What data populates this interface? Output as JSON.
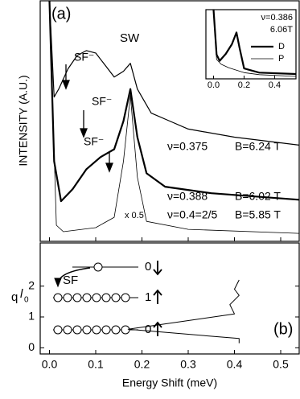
{
  "chart_data": [
    {
      "type": "line",
      "ylabel": "INTENSITY (A.U.)",
      "xlim": [
        -0.02,
        0.54
      ],
      "ylim": [
        0,
        10
      ],
      "annotations": [
        "(a)",
        "SW",
        "SF⁻",
        "SF⁻",
        "SF⁻"
      ],
      "series": [
        {
          "name": "ν=0.375",
          "field": "B=6.24 T",
          "color": "#000000",
          "line_width": 1.2,
          "x": [
            0.0,
            0.01,
            0.02,
            0.04,
            0.06,
            0.08,
            0.1,
            0.12,
            0.14,
            0.16,
            0.175,
            0.19,
            0.22,
            0.26,
            0.3,
            0.4,
            0.54
          ],
          "values": [
            10,
            6.0,
            6.33,
            7.17,
            7.73,
            7.93,
            7.83,
            7.33,
            6.83,
            7.07,
            7.4,
            6.33,
            5.33,
            5.0,
            4.67,
            4.33,
            4.0
          ]
        },
        {
          "name": "ν=0.388",
          "field": "B=6.02 T",
          "color": "#000000",
          "line_width": 2.2,
          "x": [
            0.0,
            0.01,
            0.025,
            0.05,
            0.08,
            0.11,
            0.14,
            0.16,
            0.175,
            0.19,
            0.21,
            0.25,
            0.35,
            0.54
          ],
          "values": [
            10,
            3.33,
            1.67,
            2.17,
            3.0,
            3.5,
            3.83,
            5.0,
            6.33,
            4.33,
            2.83,
            2.27,
            2.0,
            1.73
          ]
        },
        {
          "name": "ν=0.4=2/5",
          "field": "B=5.85 T",
          "scale_label": "x 0.5",
          "color": "#000000",
          "line_width": 0.8,
          "x": [
            0.0,
            0.015,
            0.03,
            0.1,
            0.14,
            0.16,
            0.175,
            0.19,
            0.21,
            0.3,
            0.54
          ],
          "values": [
            10,
            0.67,
            0.4,
            0.57,
            1.0,
            3.33,
            6.07,
            2.67,
            0.83,
            0.5,
            0.33
          ]
        }
      ]
    },
    {
      "type": "line",
      "title": "ν=0.386",
      "subtitle": "6.06T",
      "xlim": [
        -0.05,
        0.54
      ],
      "ylim": [
        0,
        10
      ],
      "xticks": [
        {
          "value": 0.0,
          "label": "0.0"
        },
        0.2,
        0.4
      ],
      "series": [
        {
          "name": "D",
          "color": "#000000",
          "line_width": 2.2,
          "x": [
            0.0,
            0.02,
            0.04,
            0.08,
            0.12,
            0.15,
            0.17,
            0.2,
            0.3,
            0.54
          ],
          "values": [
            10,
            3.5,
            2.6,
            3.6,
            5.0,
            6.7,
            4.5,
            1.5,
            0.9,
            0.7
          ]
        },
        {
          "name": "P",
          "color": "#000000",
          "line_width": 0.8,
          "x": [
            0.0,
            0.02,
            0.05,
            0.1,
            0.2,
            0.3,
            0.54
          ],
          "values": [
            10,
            2.8,
            2.1,
            1.6,
            0.9,
            0.6,
            0.35
          ]
        }
      ]
    },
    {
      "type": "line",
      "xlabel": "Energy Shift (meV)",
      "ylabel_parts": [
        "q",
        "l",
        "0"
      ],
      "annotation": "(b)",
      "xlim": [
        -0.02,
        0.54
      ],
      "ylim": [
        -0.2,
        3.4
      ],
      "xticks": [
        {
          "value": 0.0,
          "label": "0.0"
        },
        0.1,
        0.2,
        0.3,
        0.4,
        0.5
      ],
      "yticks": [
        0,
        1,
        2
      ],
      "diagram": {
        "sf": "SF",
        "levels": [
          "0",
          "1",
          "0"
        ]
      },
      "series": [
        {
          "color": "#000000",
          "line_width": 1,
          "x": [
            0.41,
            0.4,
            0.41,
            0.39,
            0.4,
            0.17,
            0.41,
            0.41
          ],
          "values": [
            2.2,
            1.9,
            1.7,
            1.4,
            1.1,
            0.6,
            0.3,
            0.15
          ]
        }
      ]
    }
  ]
}
